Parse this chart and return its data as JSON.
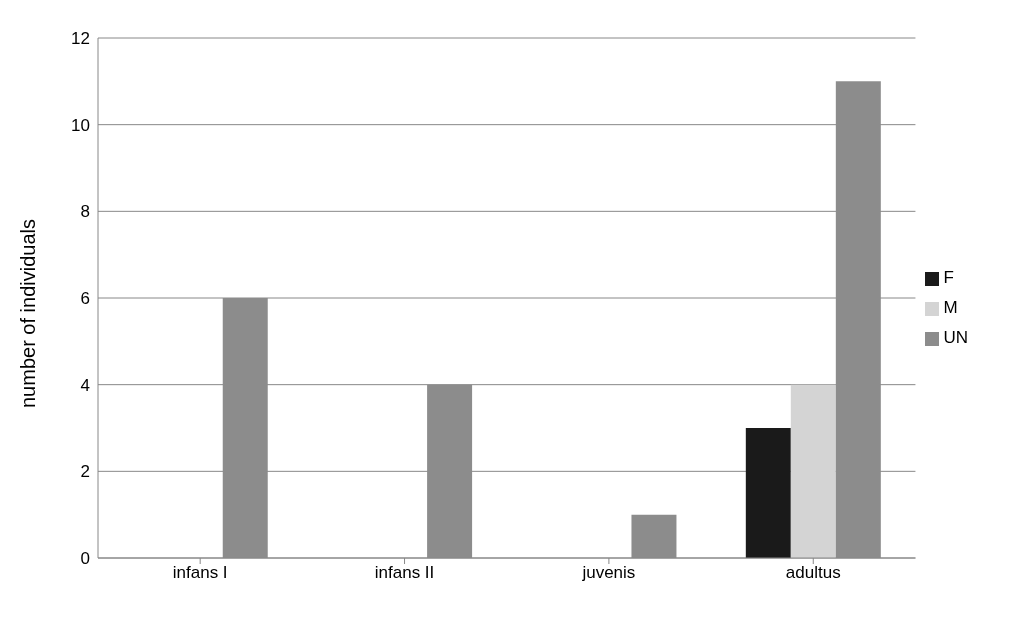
{
  "chart_data": {
    "type": "bar",
    "ylabel": "number of individuals",
    "categories": [
      "infans I",
      "infans II",
      "juvenis",
      "adultus"
    ],
    "series": [
      {
        "name": "F",
        "color": "#1a1a1a",
        "values": [
          0,
          0,
          0,
          3
        ]
      },
      {
        "name": "M",
        "color": "#d4d4d4",
        "values": [
          0,
          0,
          0,
          4
        ]
      },
      {
        "name": "UN",
        "color": "#8c8c8c",
        "values": [
          6,
          4,
          1,
          11
        ]
      }
    ],
    "ylim": [
      0,
      12
    ],
    "yticks": [
      0,
      2,
      4,
      6,
      8,
      10,
      12
    ],
    "grid": "y",
    "legend": "right"
  }
}
